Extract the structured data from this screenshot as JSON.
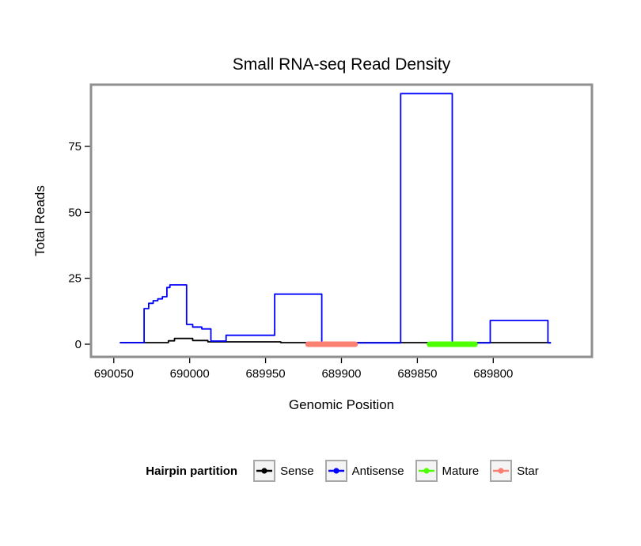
{
  "page": {
    "background": "#ffffff"
  },
  "chart_data": {
    "type": "line",
    "title": "Small RNA-seq Read Density",
    "xlabel": "Genomic Position",
    "ylabel": "Total Reads",
    "x_axis_reversed": true,
    "x_range": [
      690065,
      689735
    ],
    "y_range": [
      -4.8,
      98.4
    ],
    "x_ticks": [
      690050,
      690000,
      689950,
      689900,
      689850,
      689800
    ],
    "y_ticks": [
      0,
      25,
      50,
      75
    ],
    "frame_color": "#8f8f8f",
    "series": [
      {
        "name": "Sense",
        "color": "#000000",
        "points": [
          [
            690046,
            0.6
          ],
          [
            690014,
            1.3
          ],
          [
            690010,
            2.2
          ],
          [
            689998,
            1.4
          ],
          [
            689988,
            0.9
          ],
          [
            689940,
            0.6
          ],
          [
            689762,
            0.6
          ]
        ]
      },
      {
        "name": "Antisense",
        "color": "#0000ff",
        "points": [
          [
            690046,
            0.6
          ],
          [
            690030,
            13.5
          ],
          [
            690027,
            15.5
          ],
          [
            690024,
            16.5
          ],
          [
            690021,
            17.2
          ],
          [
            690018,
            18
          ],
          [
            690015,
            21.5
          ],
          [
            690013,
            22.5
          ],
          [
            690002,
            7.5
          ],
          [
            689998,
            6.5
          ],
          [
            689992,
            5.8
          ],
          [
            689986,
            1.2
          ],
          [
            689976,
            3.4
          ],
          [
            689944,
            19
          ],
          [
            689913,
            0.5
          ],
          [
            689861,
            95
          ],
          [
            689827,
            0.5
          ],
          [
            689802,
            9
          ],
          [
            689764,
            0.5
          ],
          [
            689762,
            0.5
          ]
        ]
      }
    ],
    "partitions": [
      {
        "name": "Star",
        "color": "#fa8072",
        "start": 689922,
        "end": 689891,
        "y": 0
      },
      {
        "name": "Mature",
        "color": "#4dff00",
        "start": 689842,
        "end": 689812,
        "y": 0
      }
    ]
  },
  "legend": {
    "title": "Hairpin partition",
    "items": [
      {
        "label": "Sense",
        "color": "#000000"
      },
      {
        "label": "Antisense",
        "color": "#0000ff"
      },
      {
        "label": "Mature",
        "color": "#4dff00"
      },
      {
        "label": "Star",
        "color": "#fa8072"
      }
    ]
  }
}
